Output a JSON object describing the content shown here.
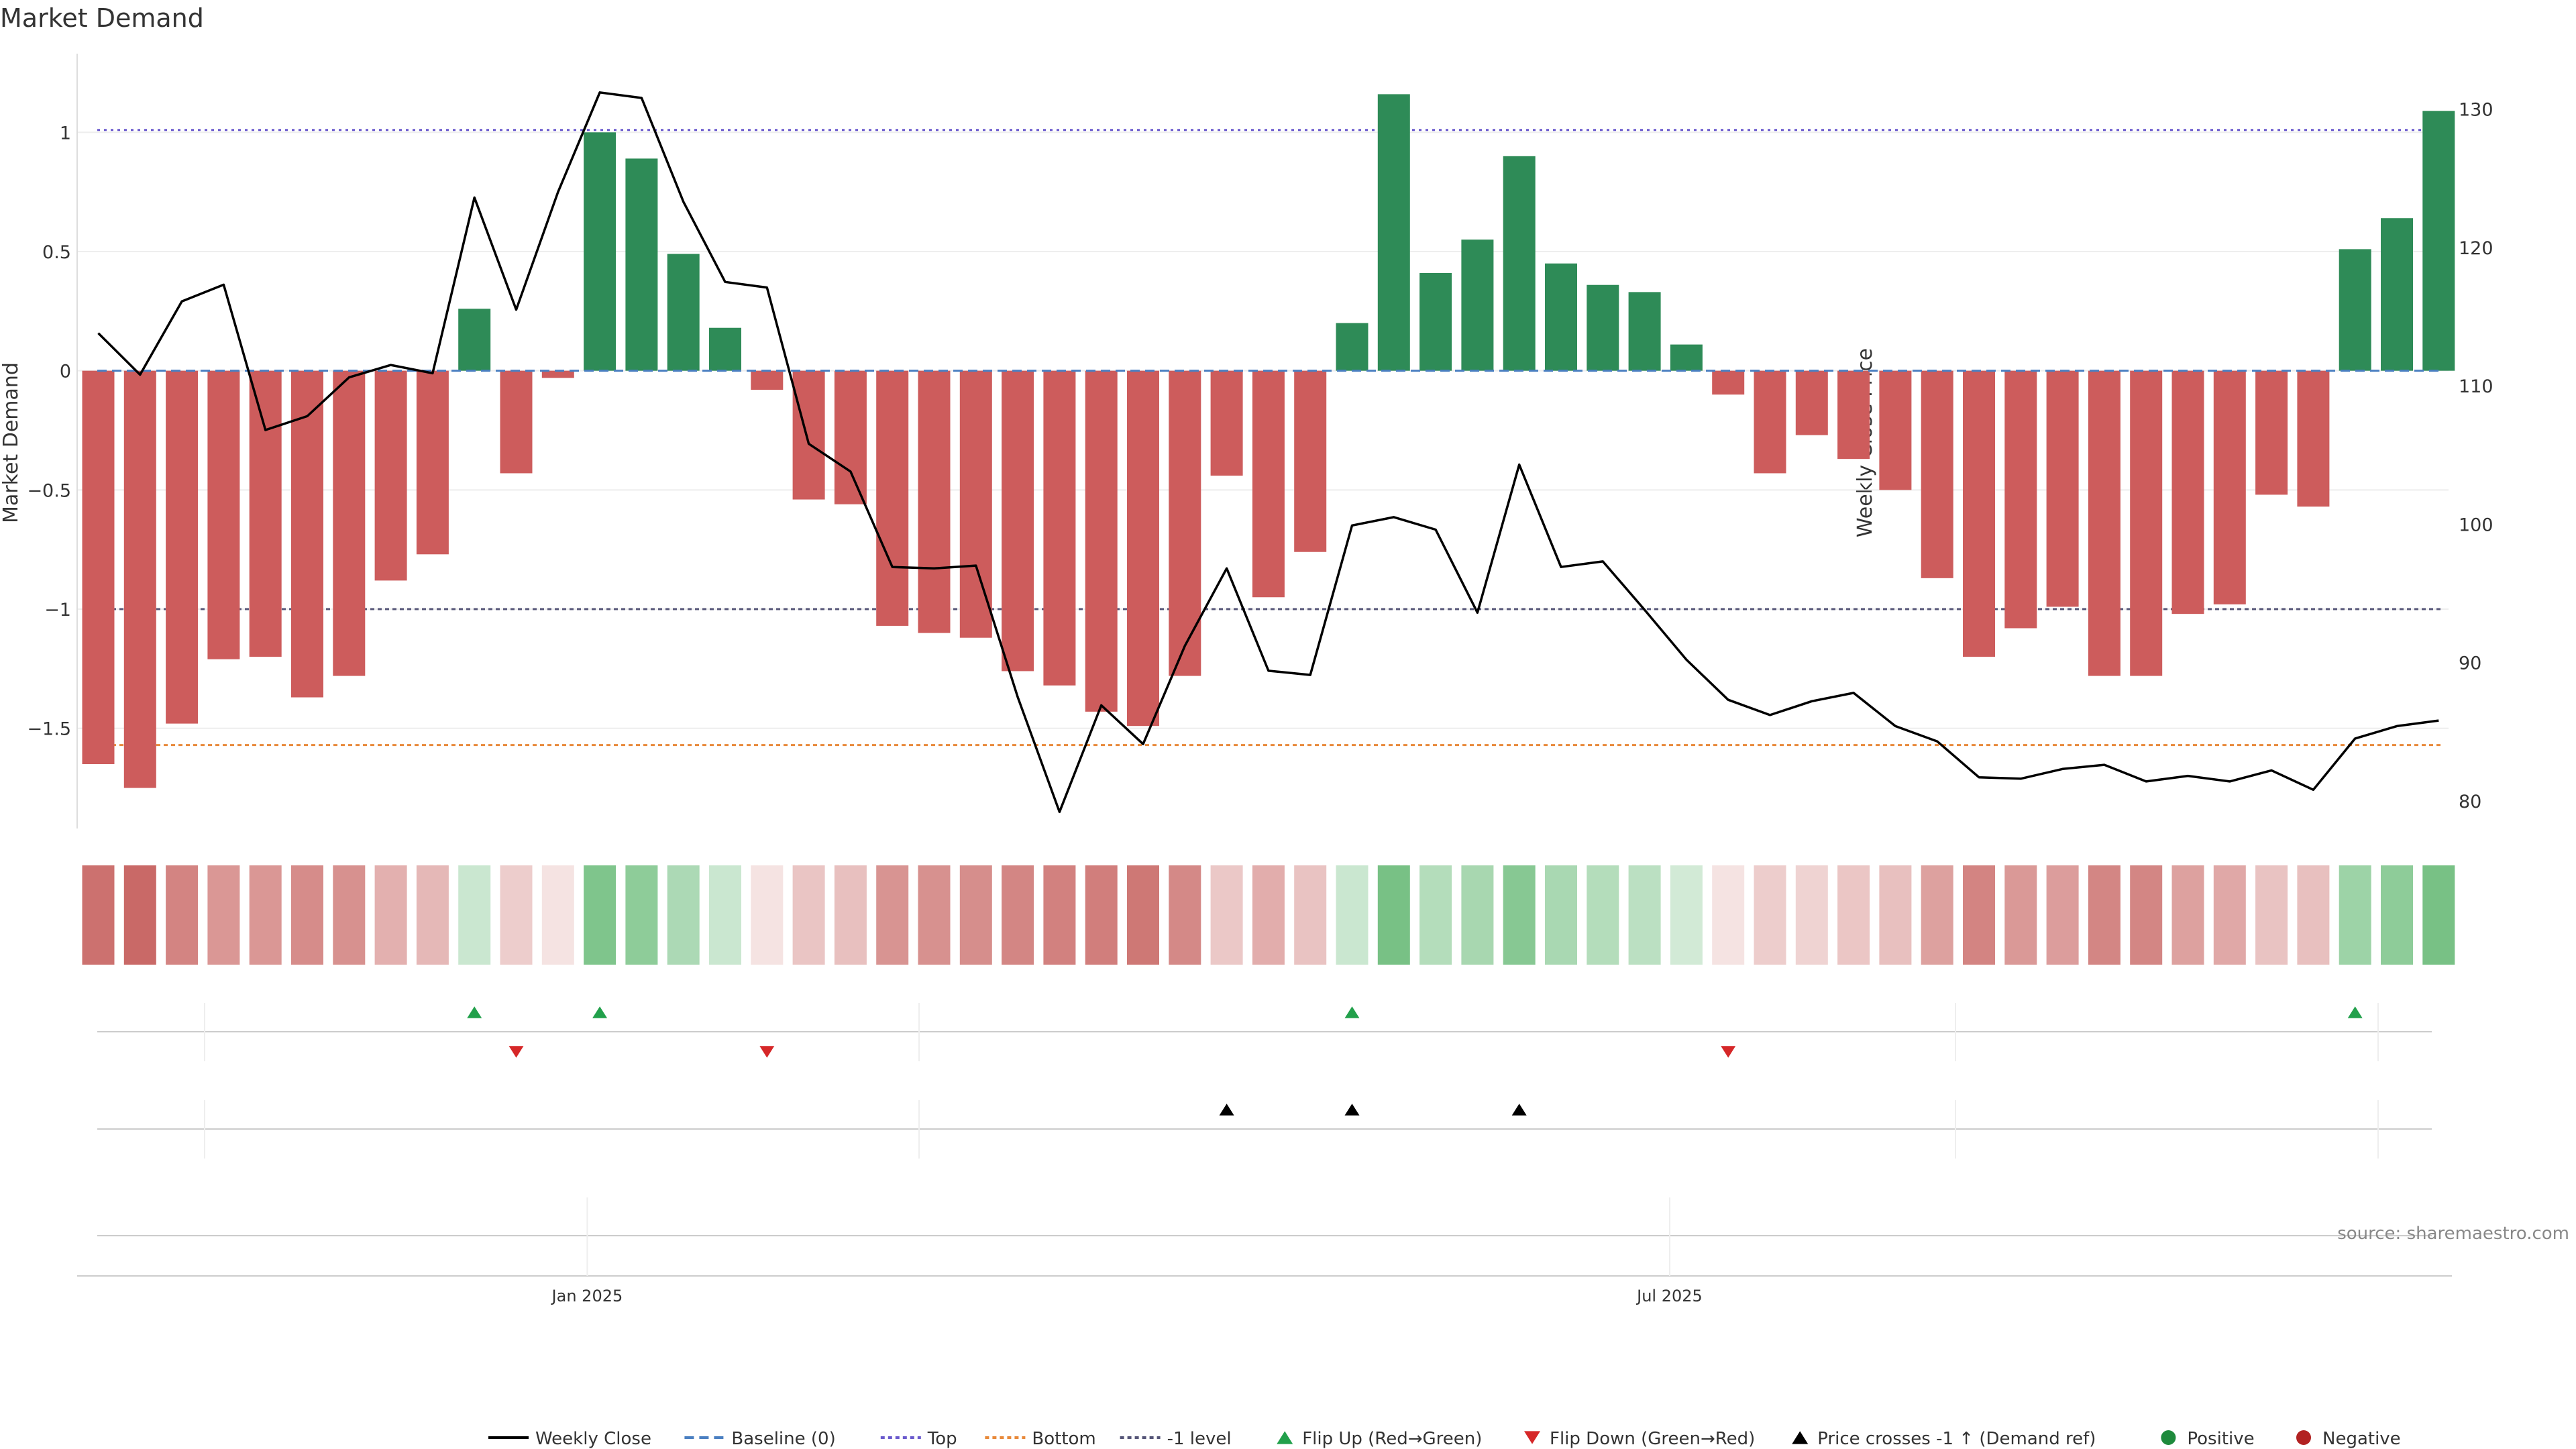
{
  "chart_data": {
    "type": "bar",
    "title": "Market Demand",
    "ylabel": "Market Demand",
    "y2label": "Weekly Close Price",
    "ylim": [
      -1.92,
      1.33
    ],
    "y2lim": [
      78,
      134
    ],
    "yticks": [
      1,
      0.5,
      0,
      -0.5,
      -1,
      -1.5
    ],
    "ytick_labels": [
      "1",
      "0.5",
      "0",
      "−0.5",
      "−1",
      "−1.5"
    ],
    "y2ticks": [
      130,
      120,
      110,
      100,
      90,
      80
    ],
    "y2tick_labels": [
      "130",
      "120",
      "110",
      "100",
      "90",
      "80"
    ],
    "xticks": [
      {
        "label": "Jan 2025",
        "week": 11.7
      },
      {
        "label": "Jul 2025",
        "week": 37.6
      }
    ],
    "levels": {
      "top": 1.01,
      "bottom": -1.57,
      "minus_one": -1,
      "baseline": 0
    },
    "series": [
      {
        "name": "Market Demand",
        "values": [
          -1.65,
          -1.75,
          -1.48,
          -1.21,
          -1.2,
          -1.37,
          -1.28,
          -0.88,
          -0.77,
          0.26,
          -0.43,
          -0.03,
          1.0,
          0.89,
          0.49,
          0.18,
          -0.08,
          -0.54,
          -0.56,
          -1.07,
          -1.1,
          -1.12,
          -1.26,
          -1.32,
          -1.43,
          -1.49,
          -1.28,
          -0.44,
          -0.95,
          -0.76,
          0.2,
          1.16,
          0.41,
          0.55,
          0.9,
          0.45,
          0.36,
          0.33,
          0.11,
          -0.1,
          -0.43,
          -0.27,
          -0.37,
          -0.5,
          -0.87,
          -1.2,
          -1.08,
          -0.99,
          -1.28,
          -1.28,
          -1.02,
          -0.98,
          -0.52,
          -0.57,
          0.51,
          0.64,
          1.09
        ]
      },
      {
        "name": "Weekly Close",
        "values": [
          113.8,
          110.8,
          116.1,
          117.3,
          106.8,
          107.8,
          110.6,
          111.5,
          110.9,
          123.6,
          115.5,
          124.0,
          131.2,
          130.8,
          123.3,
          117.5,
          117.1,
          105.8,
          103.8,
          96.9,
          96.8,
          97.0,
          87.5,
          79.2,
          86.9,
          84.1,
          91.2,
          96.8,
          89.4,
          89.1,
          99.9,
          100.5,
          99.6,
          93.6,
          104.3,
          96.9,
          97.3,
          93.8,
          90.2,
          87.3,
          86.2,
          87.2,
          87.8,
          85.4,
          84.3,
          81.7,
          81.6,
          82.3,
          82.6,
          81.4,
          81.8,
          81.4,
          82.2,
          80.8,
          84.5,
          85.4,
          85.8
        ]
      }
    ],
    "strip_intensity": [
      0.9,
      0.95,
      0.78,
      0.66,
      0.66,
      0.73,
      0.7,
      0.5,
      0.45,
      0.35,
      0.32,
      0.18,
      0.85,
      0.75,
      0.55,
      0.35,
      0.18,
      0.37,
      0.4,
      0.68,
      0.7,
      0.72,
      0.77,
      0.8,
      0.82,
      0.86,
      0.75,
      0.35,
      0.52,
      0.38,
      0.35,
      0.9,
      0.5,
      0.58,
      0.8,
      0.57,
      0.5,
      0.45,
      0.3,
      0.18,
      0.32,
      0.28,
      0.36,
      0.4,
      0.6,
      0.78,
      0.65,
      0.62,
      0.77,
      0.77,
      0.6,
      0.55,
      0.38,
      0.4,
      0.65,
      0.75,
      0.9
    ],
    "flip_up_weeks": [
      9,
      12,
      30,
      54
    ],
    "flip_down_weeks": [
      10,
      16,
      39
    ],
    "price_cross_weeks": [
      27,
      30,
      34
    ],
    "source": "source: sharemaestro.com",
    "legend": [
      {
        "label": "Weekly Close",
        "style": "line"
      },
      {
        "label": "Baseline (0)",
        "style": "dash"
      },
      {
        "label": "Top",
        "style": "dot-blue"
      },
      {
        "label": "Bottom",
        "style": "dot-orange"
      },
      {
        "label": "-1 level",
        "style": "dot-gray"
      },
      {
        "label": "Flip Up (Red→Green)",
        "style": "tri-up-green"
      },
      {
        "label": "Flip Down (Green→Red)",
        "style": "tri-down-red"
      },
      {
        "label": "Price crosses -1 ↑ (Demand ref)",
        "style": "tri-up-black"
      },
      {
        "label": "Positive",
        "style": "circle-green"
      },
      {
        "label": "Negative",
        "style": "circle-red"
      }
    ]
  },
  "colors": {
    "positive": "#2e8b57",
    "negative": "#cd5c5c",
    "strip_positive": "#2ea043",
    "strip_negative": "#c0504d",
    "flip_up": "#22a04b",
    "flip_down": "#d62728",
    "top_line": "#6a5acd",
    "bottom_line": "#e8893a",
    "minus_one_line": "#555577",
    "baseline": "#4a7fc1"
  }
}
